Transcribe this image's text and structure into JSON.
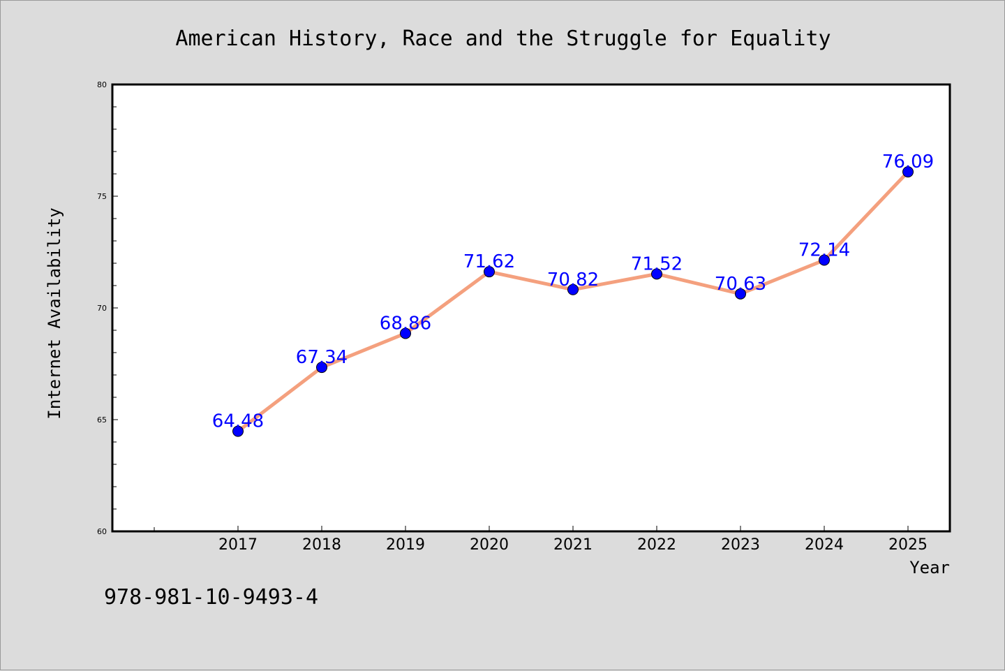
{
  "footer": {
    "isbn": "978-981-10-9493-4"
  },
  "colors": {
    "line": "#f4a07e",
    "marker": "#0000ff",
    "label": "#0000ff",
    "background": "#dcdcdc",
    "plot_background": "#ffffff"
  },
  "chart_data": {
    "type": "line",
    "title": "American History, Race and the Struggle for Equality",
    "xlabel": "Year",
    "ylabel": "Internet Availability",
    "categories": [
      "2017",
      "2018",
      "2019",
      "2020",
      "2021",
      "2022",
      "2023",
      "2024",
      "2025"
    ],
    "series": [
      {
        "values": [
          64.48,
          67.34,
          68.86,
          71.62,
          70.82,
          71.52,
          70.63,
          72.14,
          76.09
        ]
      }
    ],
    "data_labels": [
      "64.48",
      "67.34",
      "68.86",
      "71.62",
      "70.82",
      "71.52",
      "70.63",
      "72.14",
      "76.09"
    ],
    "ylim": [
      60,
      80
    ],
    "yticks": [
      60,
      65,
      70,
      75,
      80
    ],
    "grid": false,
    "markers": "circle"
  }
}
